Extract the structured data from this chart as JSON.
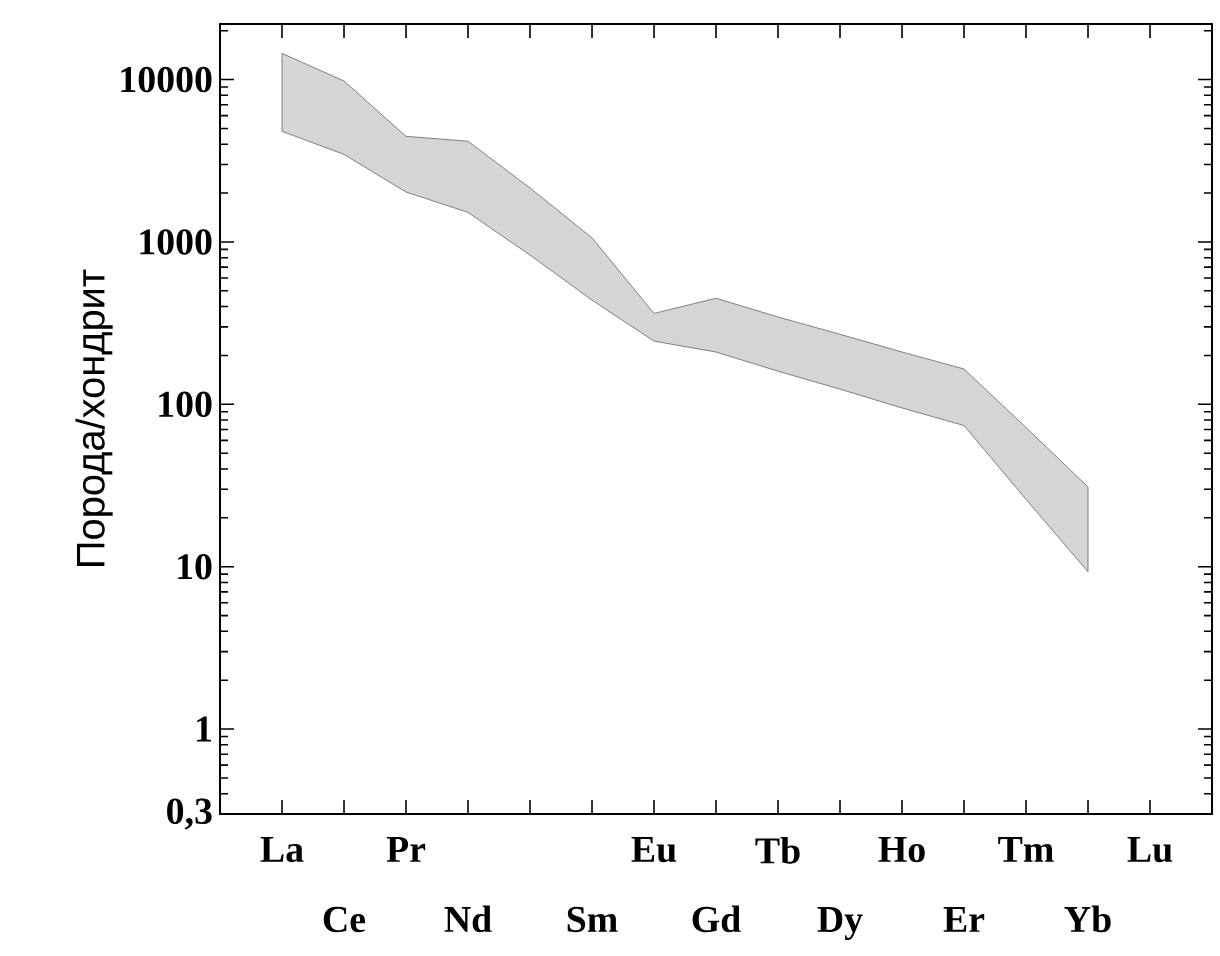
{
  "chart_data": {
    "type": "area",
    "ylabel": "Порода/хондрит",
    "categories": [
      "La",
      "Ce",
      "Pr",
      "Nd",
      null,
      "Sm",
      "Eu",
      "Gd",
      "Tb",
      "Dy",
      "Ho",
      "Er",
      "Tm",
      "Yb",
      "Lu"
    ],
    "series": [
      {
        "color": "#d4d5d7",
        "values": [
          null,
          null,
          null,
          null,
          null,
          null,
          null,
          null,
          null,
          null,
          null,
          null,
          null,
          null,
          null
        ],
        "upper": [
          14500,
          9800,
          4470,
          4170,
          2150,
          1060,
          363,
          450,
          345,
          270,
          210,
          165,
          72,
          31,
          null
        ],
        "lower": [
          4800,
          3460,
          2030,
          1520,
          830,
          438,
          245,
          210,
          160,
          124,
          95,
          74,
          26,
          9.3,
          null
        ]
      }
    ],
    "log": true,
    "ylim": [
      0.3,
      22000
    ],
    "yticks": [
      {
        "value": 0.3,
        "label": "0,3"
      },
      1,
      10,
      100,
      1000,
      10000
    ],
    "grid": false
  }
}
